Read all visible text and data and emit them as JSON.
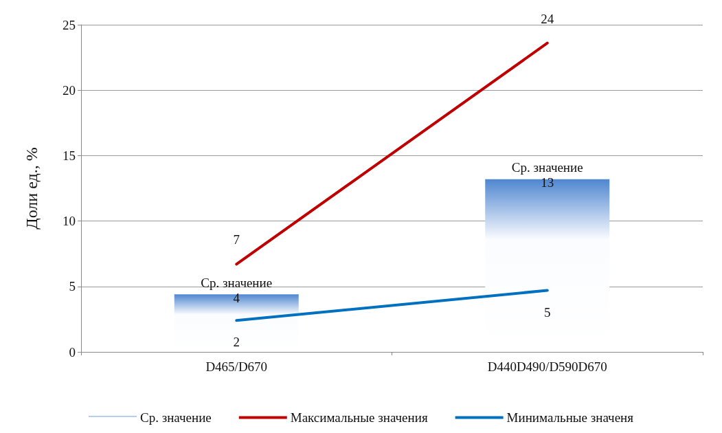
{
  "chart_data": {
    "type": "bar",
    "ylabel": "Доли ед., %",
    "categories": [
      "D465/D670",
      "D440D490/D590D670"
    ],
    "series": [
      {
        "name": "Ср. значение",
        "color": "#4f86d0",
        "values": [
          4.4,
          13.2
        ],
        "value_labels": [
          "4",
          "13"
        ]
      },
      {
        "name": "Максимальные значения",
        "type": "line",
        "color": "#c00000",
        "values": [
          6.7,
          23.6
        ],
        "value_labels": [
          "7",
          "24"
        ]
      },
      {
        "name": "Минимальные значеня",
        "type": "line",
        "color": "#0070c0",
        "values": [
          2.4,
          4.7
        ],
        "value_labels": [
          "2",
          "5"
        ]
      }
    ],
    "ylim": [
      0,
      25
    ],
    "yticks": [
      0,
      5,
      10,
      15,
      20,
      25
    ],
    "grid": "y",
    "legend": "bottom",
    "marker": "none"
  }
}
